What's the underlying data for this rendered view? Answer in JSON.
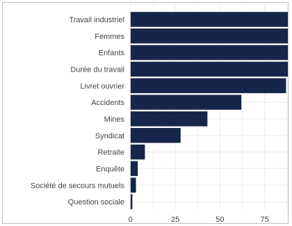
{
  "chart_data": {
    "type": "bar",
    "orientation": "horizontal",
    "categories": [
      "Travail industriel",
      "Femmes",
      "Enfants",
      "Durée du travail",
      "Livret ouvrier",
      "Accidents",
      "Mines",
      "Syndicat",
      "Retraite",
      "Enquête",
      "Société de secours mutuels",
      "Question sociale"
    ],
    "values": [
      88,
      88,
      88,
      88,
      87,
      62,
      43,
      28,
      8,
      4,
      3,
      1
    ],
    "xticks": [
      0,
      25,
      50,
      75
    ],
    "xlim": [
      -1.5,
      88
    ],
    "grid": true,
    "bar_color": "#16254a",
    "grid_color": "#ebebeb",
    "title": "",
    "xlabel": "",
    "ylabel": ""
  }
}
